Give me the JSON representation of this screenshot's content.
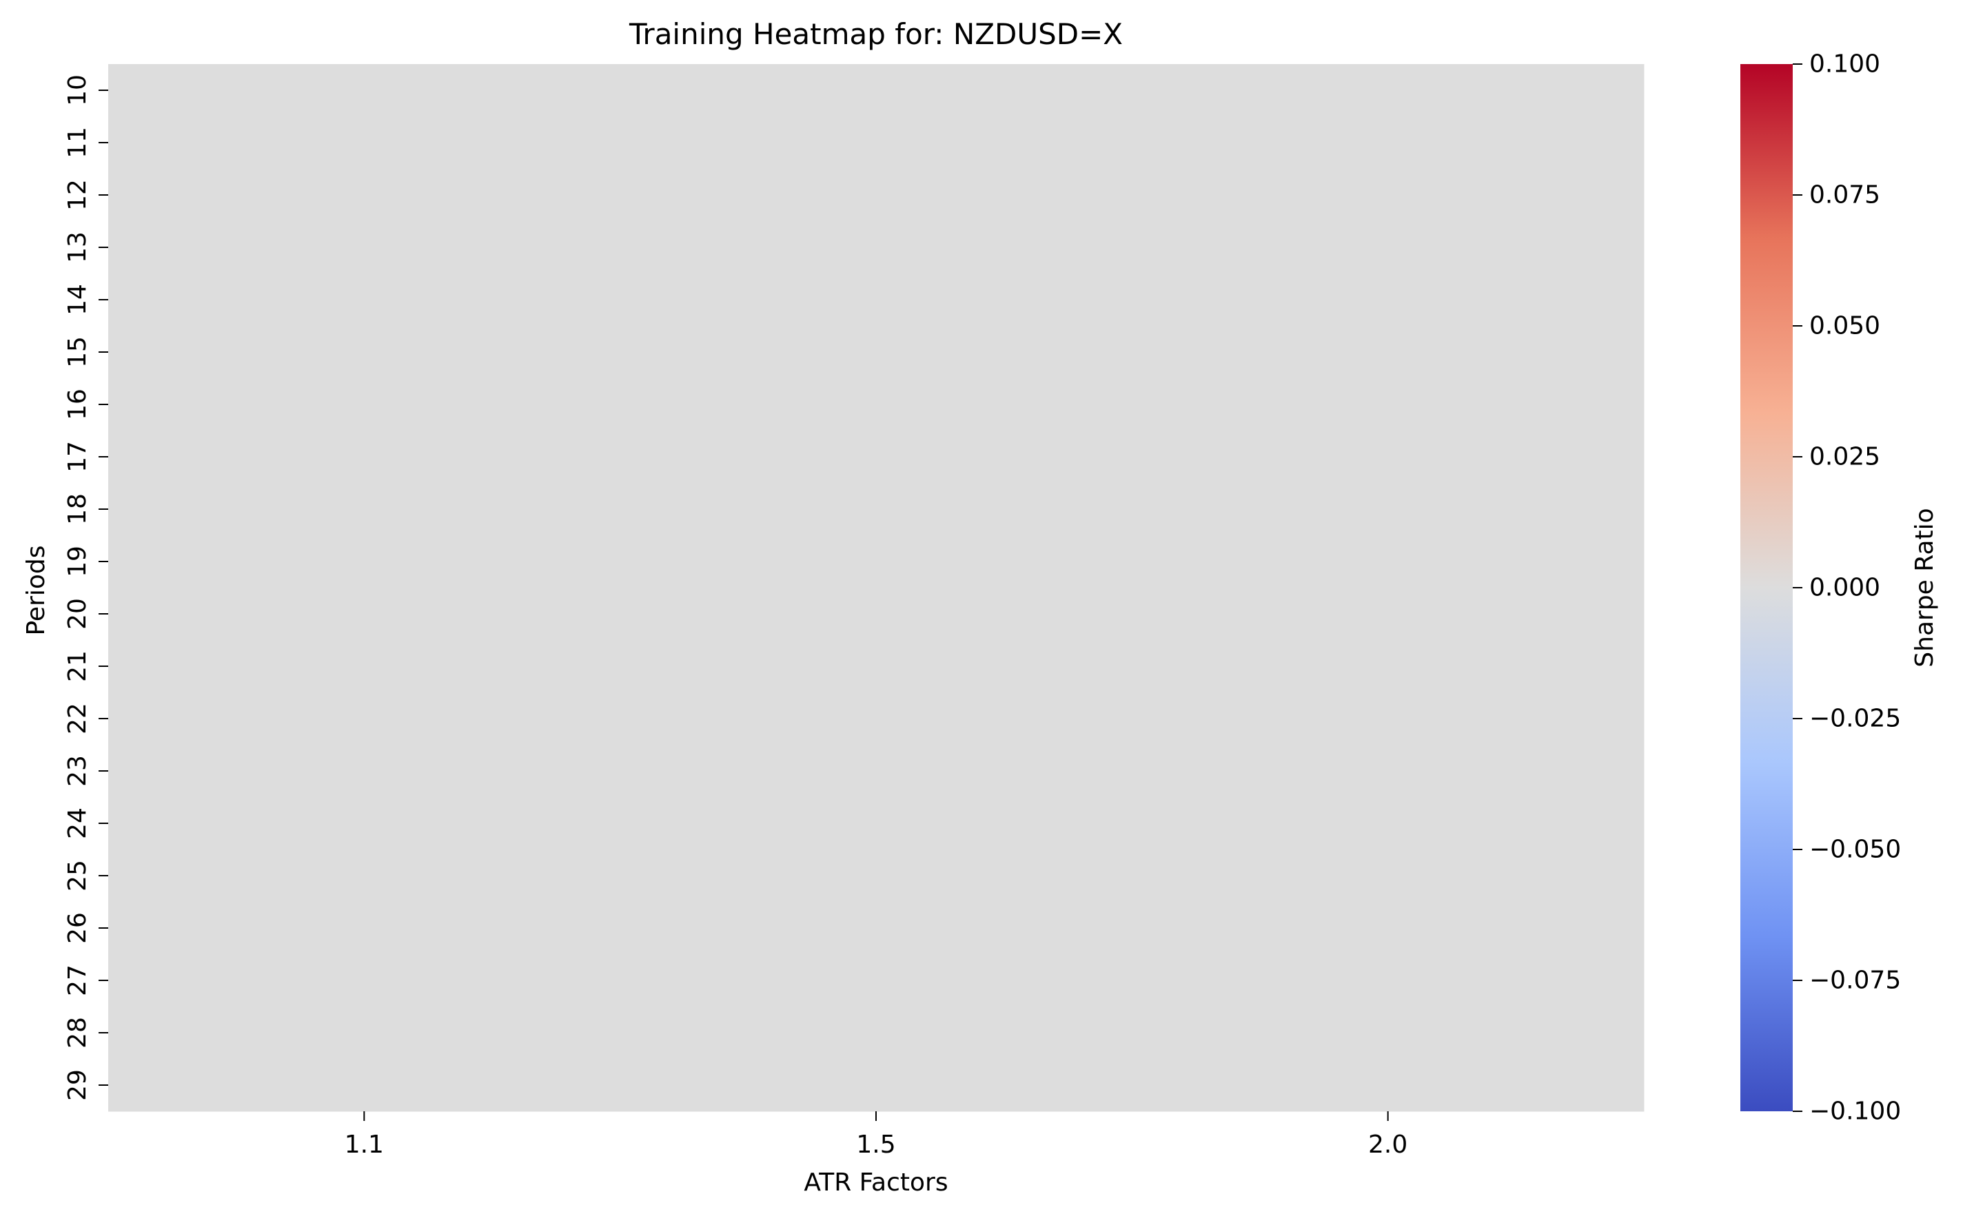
{
  "chart_data": {
    "type": "heatmap",
    "title": "Training Heatmap for: NZDUSD=X",
    "xlabel": "ATR Factors",
    "ylabel": "Periods",
    "x_categories": [
      "1.1",
      "1.5",
      "2.0"
    ],
    "y_categories": [
      "10",
      "11",
      "12",
      "13",
      "14",
      "15",
      "16",
      "17",
      "18",
      "19",
      "20",
      "21",
      "22",
      "23",
      "24",
      "25",
      "26",
      "27",
      "28",
      "29"
    ],
    "values": [
      [
        0,
        0,
        0
      ],
      [
        0,
        0,
        0
      ],
      [
        0,
        0,
        0
      ],
      [
        0,
        0,
        0
      ],
      [
        0,
        0,
        0
      ],
      [
        0,
        0,
        0
      ],
      [
        0,
        0,
        0
      ],
      [
        0,
        0,
        0
      ],
      [
        0,
        0,
        0
      ],
      [
        0,
        0,
        0
      ],
      [
        0,
        0,
        0
      ],
      [
        0,
        0,
        0
      ],
      [
        0,
        0,
        0
      ],
      [
        0,
        0,
        0
      ],
      [
        0,
        0,
        0
      ],
      [
        0,
        0,
        0
      ],
      [
        0,
        0,
        0
      ],
      [
        0,
        0,
        0
      ],
      [
        0,
        0,
        0
      ],
      [
        0,
        0,
        0
      ]
    ],
    "colorbar": {
      "label": "Sharpe Ratio",
      "vmin": -0.1,
      "vmax": 0.1,
      "colormap": "coolwarm",
      "ticks": [
        0.1,
        0.075,
        0.05,
        0.025,
        0.0,
        -0.025,
        -0.05,
        -0.075,
        -0.1
      ],
      "tick_labels": [
        "0.100",
        "0.075",
        "0.050",
        "0.025",
        "0.000",
        "−0.025",
        "−0.050",
        "−0.075",
        "−0.100"
      ]
    },
    "colors": {
      "zero": "#dddddd",
      "colormap_stops": [
        "#3b4cc0",
        "#6f92f3",
        "#aac7fd",
        "#dddddd",
        "#f7b194",
        "#e7745b",
        "#b40426"
      ]
    }
  }
}
